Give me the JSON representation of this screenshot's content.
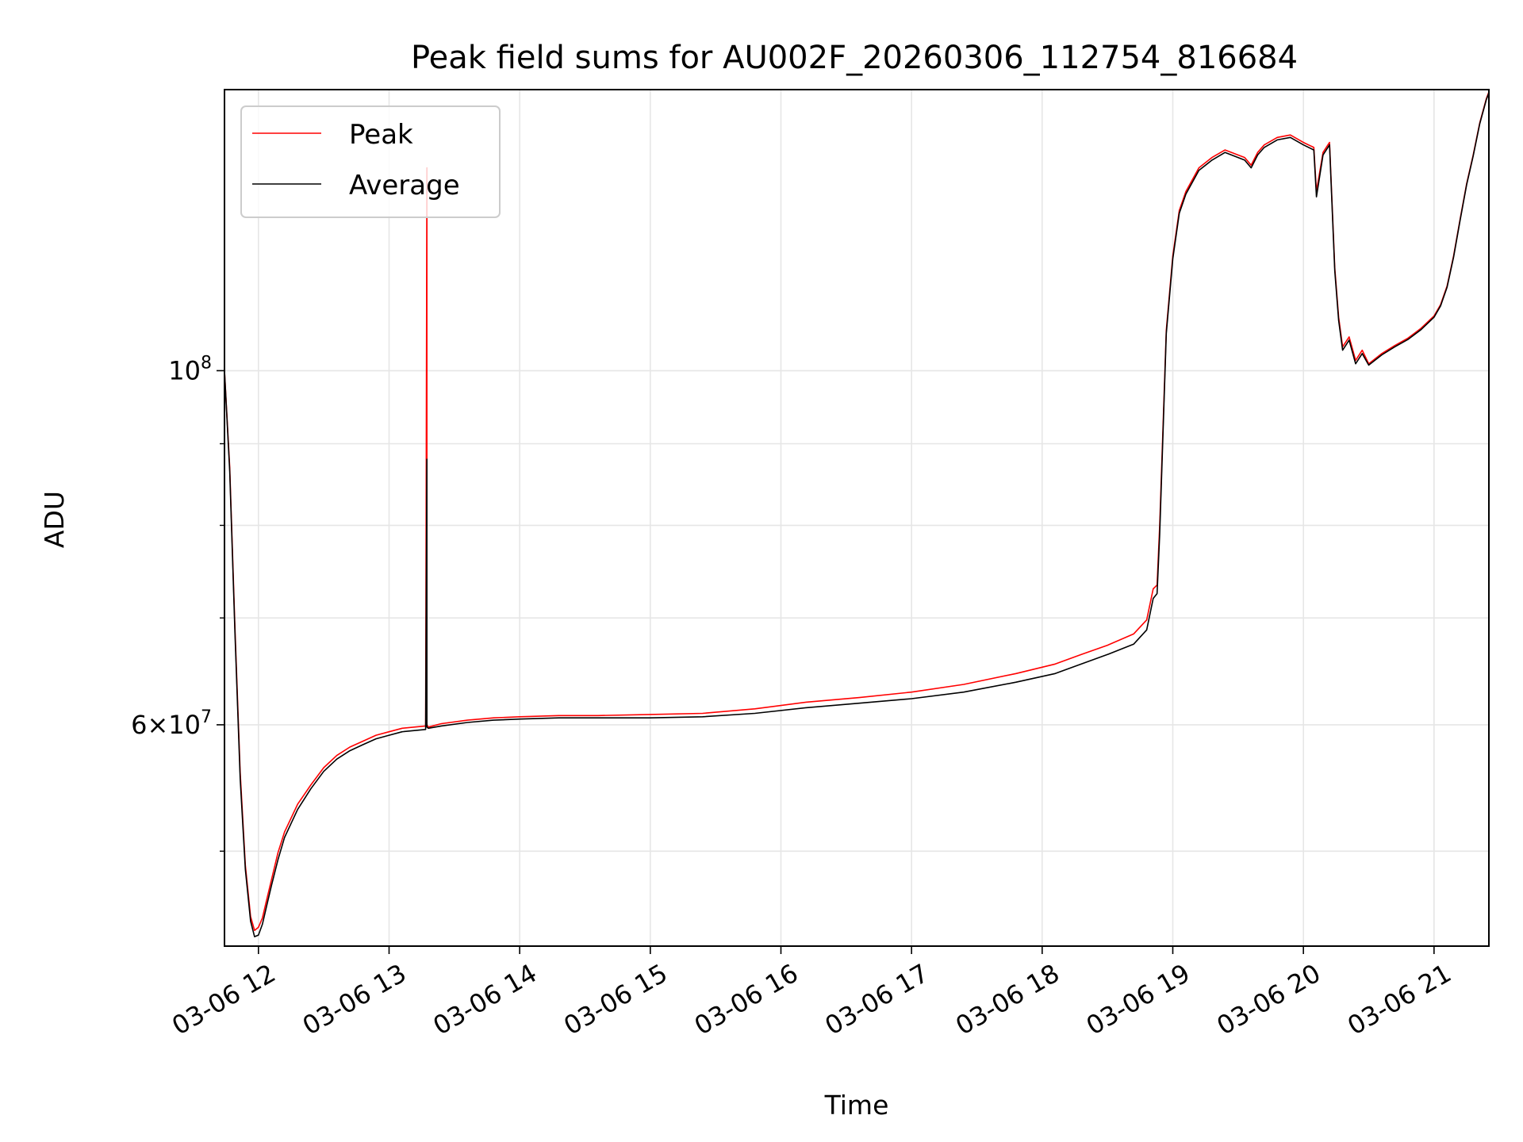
{
  "chart_data": {
    "type": "line",
    "title": "Peak field sums for AU002F_20260306_112754_816684",
    "xlabel": "Time",
    "ylabel": "ADU",
    "x_unit": "hour of day (2026-03-06)",
    "xlim": [
      11.74,
      21.42
    ],
    "ylim": [
      43600000,
      150000000
    ],
    "yscale": "log",
    "grid": true,
    "legend_placement": "upper left",
    "x_tick_labels": [
      "03-06 12",
      "03-06 13",
      "03-06 14",
      "03-06 15",
      "03-06 16",
      "03-06 17",
      "03-06 18",
      "03-06 19",
      "03-06 20",
      "03-06 21"
    ],
    "x_tick_values": [
      12,
      13,
      14,
      15,
      16,
      17,
      18,
      19,
      20,
      21
    ],
    "y_major_ticks": [
      {
        "value": 60000000,
        "base": "6",
        "exp": "7"
      },
      {
        "value": 100000000,
        "base": "10",
        "exp": "8"
      }
    ],
    "y_minor_ticks": [
      50000000,
      70000000,
      80000000,
      90000000
    ],
    "series": [
      {
        "name": "Peak",
        "color": "#ff0000",
        "x": [
          11.74,
          11.78,
          11.82,
          11.86,
          11.9,
          11.94,
          11.97,
          12.0,
          12.03,
          12.06,
          12.1,
          12.15,
          12.2,
          12.3,
          12.4,
          12.5,
          12.6,
          12.7,
          12.8,
          12.9,
          13.0,
          13.1,
          13.28,
          13.29,
          13.29,
          13.3,
          13.4,
          13.6,
          13.8,
          14.0,
          14.3,
          14.6,
          15.0,
          15.4,
          15.8,
          16.2,
          16.6,
          17.0,
          17.4,
          17.8,
          18.1,
          18.3,
          18.5,
          18.7,
          18.8,
          18.85,
          18.88,
          18.9,
          18.95,
          19.0,
          19.05,
          19.1,
          19.2,
          19.3,
          19.4,
          19.55,
          19.6,
          19.65,
          19.7,
          19.8,
          19.9,
          20.0,
          20.08,
          20.1,
          20.15,
          20.2,
          20.24,
          20.27,
          20.3,
          20.35,
          20.4,
          20.45,
          20.5,
          20.6,
          20.7,
          20.8,
          20.9,
          21.0,
          21.05,
          21.1,
          21.15,
          21.2,
          21.25,
          21.3,
          21.35,
          21.4,
          21.42
        ],
        "y": [
          100000000,
          87000000,
          69000000,
          56000000,
          49000000,
          45500000,
          44600000,
          44800000,
          45400000,
          46500000,
          48000000,
          49900000,
          51400000,
          53500000,
          55000000,
          56400000,
          57400000,
          58100000,
          58600000,
          59100000,
          59400000,
          59700000,
          59900000,
          134000000,
          60000000,
          59800000,
          60100000,
          60400000,
          60600000,
          60700000,
          60800000,
          60800000,
          60900000,
          61000000,
          61400000,
          62000000,
          62400000,
          62900000,
          63600000,
          64600000,
          65500000,
          66400000,
          67300000,
          68400000,
          69800000,
          73000000,
          73400000,
          80000000,
          106000000,
          118000000,
          126000000,
          129500000,
          134000000,
          136000000,
          137500000,
          136000000,
          134500000,
          137000000,
          138500000,
          140000000,
          140500000,
          139000000,
          138000000,
          129500000,
          137000000,
          139000000,
          116000000,
          108000000,
          103500000,
          105000000,
          101500000,
          103000000,
          101000000,
          102500000,
          103700000,
          104800000,
          106300000,
          108200000,
          110000000,
          113000000,
          118000000,
          124500000,
          131000000,
          136500000,
          143000000,
          148000000,
          149500000
        ]
      },
      {
        "name": "Average",
        "color": "#000000",
        "x": [
          11.74,
          11.78,
          11.82,
          11.86,
          11.9,
          11.94,
          11.97,
          12.0,
          12.03,
          12.06,
          12.1,
          12.15,
          12.2,
          12.3,
          12.4,
          12.5,
          12.6,
          12.7,
          12.8,
          12.9,
          13.0,
          13.1,
          13.28,
          13.29,
          13.29,
          13.3,
          13.4,
          13.6,
          13.8,
          14.0,
          14.3,
          14.6,
          15.0,
          15.4,
          15.8,
          16.2,
          16.6,
          17.0,
          17.4,
          17.8,
          18.1,
          18.3,
          18.5,
          18.7,
          18.8,
          18.85,
          18.88,
          18.9,
          18.95,
          19.0,
          19.05,
          19.1,
          19.2,
          19.3,
          19.4,
          19.55,
          19.6,
          19.65,
          19.7,
          19.8,
          19.9,
          20.0,
          20.08,
          20.1,
          20.15,
          20.2,
          20.24,
          20.27,
          20.3,
          20.35,
          20.4,
          20.45,
          20.5,
          20.6,
          20.7,
          20.8,
          20.9,
          21.0,
          21.05,
          21.1,
          21.15,
          21.2,
          21.25,
          21.3,
          21.35,
          21.4,
          21.42
        ],
        "y": [
          100000000,
          86500000,
          68500000,
          55500000,
          48700000,
          45200000,
          44200000,
          44300000,
          45000000,
          46100000,
          47600000,
          49400000,
          51000000,
          53100000,
          54700000,
          56100000,
          57100000,
          57800000,
          58300000,
          58800000,
          59100000,
          59400000,
          59600000,
          88000000,
          59800000,
          59700000,
          59900000,
          60200000,
          60400000,
          60500000,
          60600000,
          60600000,
          60600000,
          60700000,
          61000000,
          61500000,
          61900000,
          62300000,
          62900000,
          63800000,
          64600000,
          65500000,
          66400000,
          67400000,
          68800000,
          72000000,
          72500000,
          79000000,
          105500000,
          117500000,
          125500000,
          129000000,
          133500000,
          135500000,
          137000000,
          135500000,
          134000000,
          136500000,
          138000000,
          139500000,
          140000000,
          138500000,
          137500000,
          128500000,
          136500000,
          138500000,
          115500000,
          107500000,
          103000000,
          104500000,
          101000000,
          102500000,
          100800000,
          102300000,
          103500000,
          104600000,
          106100000,
          108000000,
          109800000,
          112800000,
          117800000,
          124300000,
          130800000,
          136300000,
          142800000,
          147800000,
          149300000
        ]
      }
    ]
  }
}
